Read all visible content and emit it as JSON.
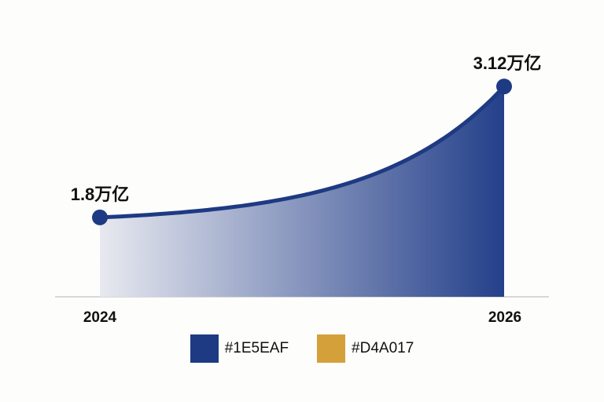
{
  "chart_data": {
    "type": "area",
    "x": [
      "2024",
      "2026"
    ],
    "series": [
      {
        "values": [
          1.8,
          3.12
        ],
        "unit": "万亿"
      }
    ],
    "data_labels": [
      "1.8万亿",
      "3.12万亿"
    ],
    "tick_labels": [
      "2024",
      "2026"
    ],
    "ylim": [
      1.0,
      3.2
    ],
    "curve": "exponential",
    "grid": false,
    "legend_position": "bottom",
    "legend": [
      {
        "label": "#1E5EAF",
        "color": "#1E3A82"
      },
      {
        "label": "#D4A017",
        "color": "#D4A03A"
      }
    ]
  },
  "colors": {
    "line": "#1E3A82",
    "fill_dark": "#24408A",
    "fill_light": "#E8E9F0",
    "axis": "#CCCCCC"
  }
}
